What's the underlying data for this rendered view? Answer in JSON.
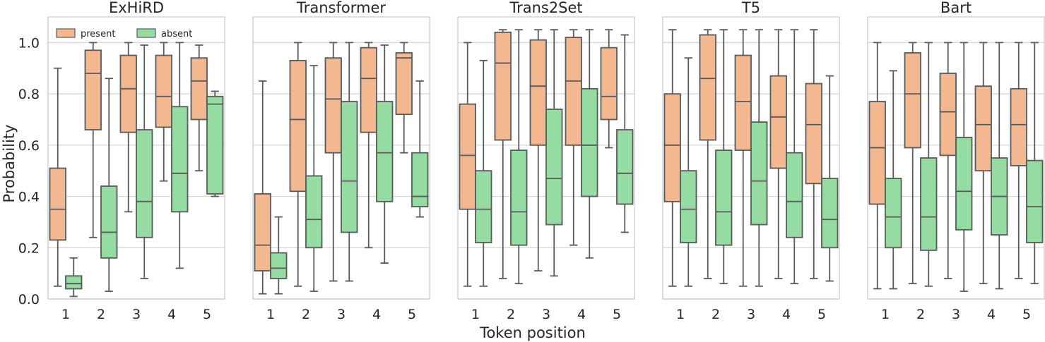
{
  "chart_data": {
    "type": "box",
    "xlabel": "Token position",
    "ylabel": "Probability",
    "ylim": [
      0.0,
      1.1
    ],
    "yticks": [
      "0.0",
      "0.2",
      "0.4",
      "0.6",
      "0.8",
      "1.0"
    ],
    "categories": [
      "1",
      "2",
      "3",
      "4",
      "5"
    ],
    "grid": true,
    "legend": {
      "placement": "top-left",
      "entries": [
        "present",
        "absent"
      ]
    },
    "colors": {
      "present": "#f4b890",
      "absent": "#95dca2",
      "lines": "#5a5a5a"
    },
    "panels": [
      {
        "title": "ExHiRD",
        "series": [
          {
            "name": "present",
            "boxes": [
              [
                0.05,
                0.23,
                0.35,
                0.51,
                0.9
              ],
              [
                0.24,
                0.66,
                0.88,
                0.97,
                1.0
              ],
              [
                0.34,
                0.65,
                0.82,
                0.95,
                1.0
              ],
              [
                0.46,
                0.67,
                0.79,
                0.95,
                1.0
              ],
              [
                0.5,
                0.7,
                0.85,
                0.94,
                0.99
              ]
            ]
          },
          {
            "name": "absent",
            "boxes": [
              [
                0.01,
                0.04,
                0.06,
                0.09,
                0.16
              ],
              [
                0.03,
                0.16,
                0.26,
                0.44,
                0.86
              ],
              [
                0.08,
                0.24,
                0.38,
                0.66,
                0.99
              ],
              [
                0.12,
                0.34,
                0.49,
                0.75,
                1.0
              ],
              [
                0.4,
                0.41,
                0.76,
                0.79,
                0.81
              ]
            ]
          }
        ]
      },
      {
        "title": "Transformer",
        "series": [
          {
            "name": "present",
            "boxes": [
              [
                0.02,
                0.11,
                0.21,
                0.41,
                0.85
              ],
              [
                0.05,
                0.42,
                0.7,
                0.93,
                1.0
              ],
              [
                0.07,
                0.57,
                0.78,
                0.94,
                1.0
              ],
              [
                0.2,
                0.65,
                0.86,
                0.98,
                1.0
              ],
              [
                0.57,
                0.72,
                0.94,
                0.96,
                1.0
              ]
            ]
          },
          {
            "name": "absent",
            "boxes": [
              [
                0.02,
                0.08,
                0.12,
                0.18,
                0.32
              ],
              [
                0.03,
                0.2,
                0.31,
                0.48,
                0.91
              ],
              [
                0.07,
                0.26,
                0.46,
                0.77,
                1.0
              ],
              [
                0.14,
                0.38,
                0.57,
                0.77,
                0.99
              ],
              [
                0.32,
                0.36,
                0.4,
                0.57,
                0.85
              ]
            ]
          }
        ]
      },
      {
        "title": "Trans2Set",
        "series": [
          {
            "name": "present",
            "boxes": [
              [
                0.05,
                0.35,
                0.56,
                0.76,
                1.0
              ],
              [
                0.08,
                0.62,
                0.92,
                1.04,
                1.05
              ],
              [
                0.11,
                0.6,
                0.83,
                1.01,
                1.05
              ],
              [
                0.21,
                0.6,
                0.85,
                1.02,
                1.05
              ],
              [
                0.59,
                0.7,
                0.79,
                0.98,
                1.05
              ]
            ]
          },
          {
            "name": "absent",
            "boxes": [
              [
                0.05,
                0.22,
                0.35,
                0.5,
                0.93
              ],
              [
                0.06,
                0.21,
                0.34,
                0.58,
                1.05
              ],
              [
                0.09,
                0.29,
                0.47,
                0.74,
                1.05
              ],
              [
                0.16,
                0.4,
                0.6,
                0.82,
                1.05
              ],
              [
                0.26,
                0.37,
                0.49,
                0.66,
                1.03
              ]
            ]
          }
        ]
      },
      {
        "title": "T5",
        "series": [
          {
            "name": "present",
            "boxes": [
              [
                0.05,
                0.38,
                0.6,
                0.8,
                1.05
              ],
              [
                0.08,
                0.62,
                0.86,
                1.03,
                1.05
              ],
              [
                0.05,
                0.58,
                0.77,
                0.95,
                1.05
              ],
              [
                0.08,
                0.51,
                0.71,
                0.87,
                1.05
              ],
              [
                0.08,
                0.45,
                0.68,
                0.84,
                1.05
              ]
            ]
          },
          {
            "name": "absent",
            "boxes": [
              [
                0.05,
                0.22,
                0.35,
                0.5,
                0.94
              ],
              [
                0.06,
                0.21,
                0.34,
                0.58,
                1.05
              ],
              [
                0.05,
                0.29,
                0.46,
                0.69,
                1.05
              ],
              [
                0.06,
                0.24,
                0.38,
                0.57,
                1.05
              ],
              [
                0.07,
                0.2,
                0.31,
                0.47,
                0.87
              ]
            ]
          }
        ]
      },
      {
        "title": "Bart",
        "series": [
          {
            "name": "present",
            "boxes": [
              [
                0.04,
                0.37,
                0.59,
                0.77,
                1.0
              ],
              [
                0.06,
                0.59,
                0.8,
                0.96,
                1.0
              ],
              [
                0.08,
                0.56,
                0.73,
                0.88,
                1.0
              ],
              [
                0.06,
                0.5,
                0.68,
                0.83,
                1.0
              ],
              [
                0.08,
                0.52,
                0.68,
                0.82,
                1.0
              ]
            ]
          },
          {
            "name": "absent",
            "boxes": [
              [
                0.04,
                0.2,
                0.32,
                0.47,
                0.89
              ],
              [
                0.05,
                0.19,
                0.32,
                0.55,
                1.0
              ],
              [
                0.03,
                0.27,
                0.42,
                0.63,
                1.0
              ],
              [
                0.04,
                0.25,
                0.4,
                0.55,
                1.0
              ],
              [
                0.06,
                0.22,
                0.36,
                0.54,
                1.0
              ]
            ]
          }
        ]
      }
    ]
  }
}
